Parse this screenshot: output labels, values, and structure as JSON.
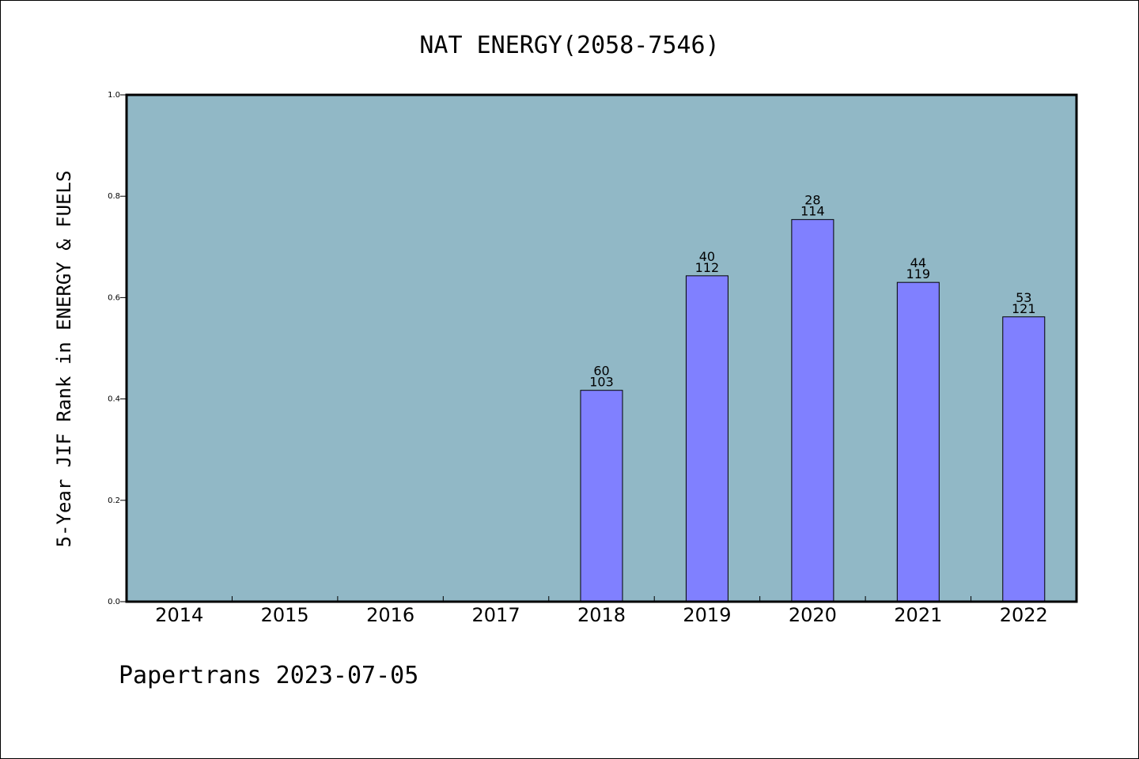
{
  "chart_data": {
    "type": "bar",
    "title": "NAT ENERGY(2058-7546)",
    "ylabel": "5-Year JIF Rank in ENERGY & FUELS",
    "xlabel": "",
    "ylim": [
      0,
      1.0
    ],
    "yticks": [
      "0.0",
      "0.2",
      "0.4",
      "0.6",
      "0.8",
      "1.0"
    ],
    "categories": [
      "2014",
      "2015",
      "2016",
      "2017",
      "2018",
      "2019",
      "2020",
      "2021",
      "2022"
    ],
    "values": [
      null,
      null,
      null,
      null,
      0.417,
      0.643,
      0.754,
      0.63,
      0.562
    ],
    "rank_labels": [
      "",
      "",
      "",
      "",
      "60",
      "40",
      "28",
      "44",
      "53"
    ],
    "total_labels": [
      "",
      "",
      "",
      "",
      "103",
      "112",
      "114",
      "119",
      "121"
    ],
    "grid": false,
    "colors": {
      "plot_background": "#91b8c6",
      "bar_fill": "#8080ff",
      "bar_edge": "#000000"
    }
  },
  "footer": {
    "text": "Papertrans 2023-07-05"
  }
}
